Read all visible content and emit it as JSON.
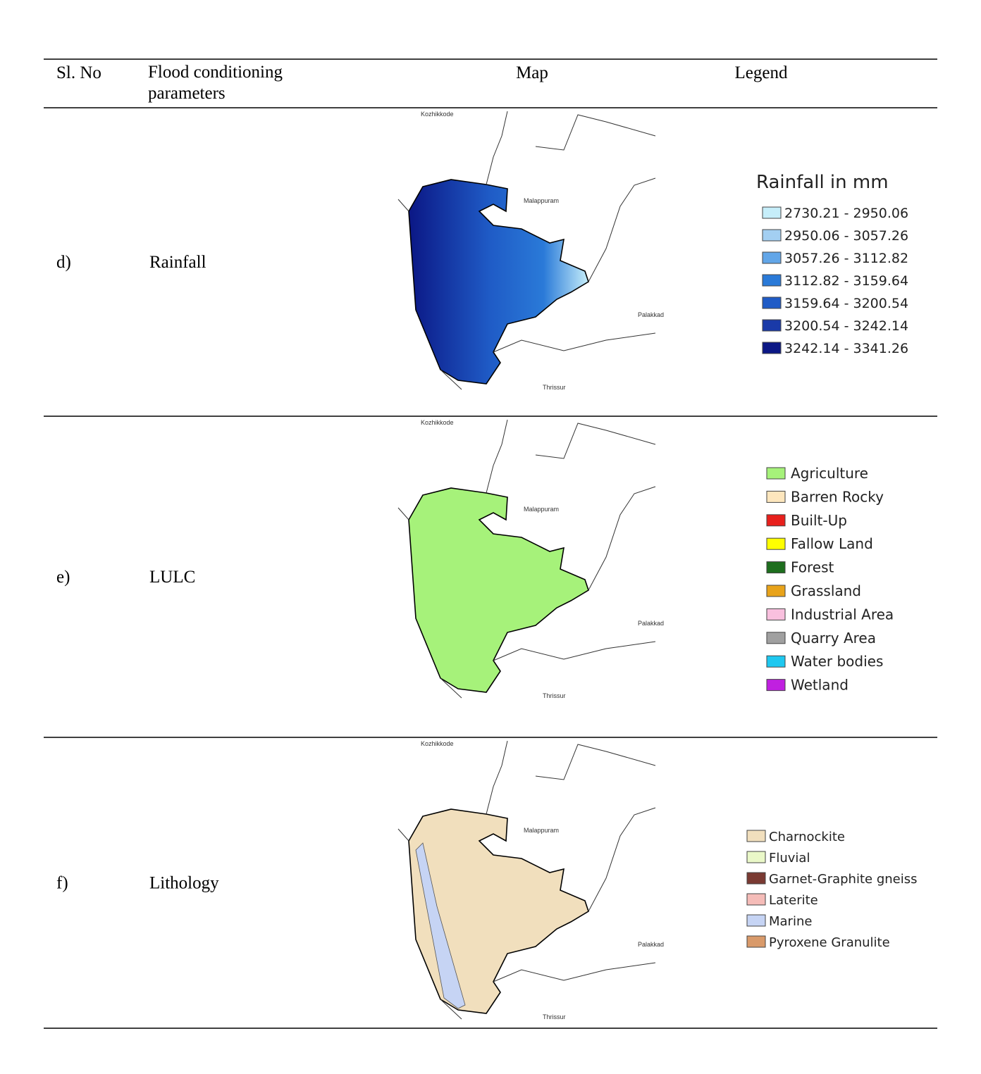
{
  "table": {
    "header": [
      "Sl. No",
      "Flood conditioning parameters",
      "Map",
      "Legend"
    ],
    "rows": [
      {
        "number": "d)",
        "parameter": "Rainfall",
        "map_labels": [
          "Kozhikkode",
          "Malappuram",
          "Palakkad",
          "Thrissur"
        ],
        "legend_title": "Rainfall in mm",
        "legend": [
          {
            "label": "2730.21 - 2950.06",
            "color": "#c6eefa"
          },
          {
            "label": "2950.06 - 3057.26",
            "color": "#a3cff2"
          },
          {
            "label": "3057.26 - 3112.82",
            "color": "#62a6e8"
          },
          {
            "label": "3112.82 - 3159.64",
            "color": "#2a7ad8"
          },
          {
            "label": "3159.64 - 3200.54",
            "color": "#1f5bc6"
          },
          {
            "label": "3200.54 - 3242.14",
            "color": "#1a3aa8"
          },
          {
            "label": "3242.14 - 3341.26",
            "color": "#0b1785"
          }
        ]
      },
      {
        "number": "e)",
        "parameter": "LULC",
        "map_labels": [
          "Kozhikkode",
          "Malappuram",
          "Palakkad",
          "Thrissur"
        ],
        "legend": [
          {
            "label": "Agriculture",
            "color": "#a6f27a"
          },
          {
            "label": "Barren Rocky",
            "color": "#fde6bd"
          },
          {
            "label": "Built-Up",
            "color": "#e8201c"
          },
          {
            "label": "Fallow Land",
            "color": "#ffff00"
          },
          {
            "label": "Forest",
            "color": "#1e6e1e"
          },
          {
            "label": "Grassland",
            "color": "#e8a31a"
          },
          {
            "label": "Industrial Area",
            "color": "#f9c0de"
          },
          {
            "label": "Quarry Area",
            "color": "#a0a0a0"
          },
          {
            "label": "Water bodies",
            "color": "#1ec8f0"
          },
          {
            "label": "Wetland",
            "color": "#c020e0"
          }
        ]
      },
      {
        "number": "f)",
        "parameter": "Lithology",
        "map_labels": [
          "Kozhikkode",
          "Malappuram",
          "Palakkad",
          "Thrissur"
        ],
        "legend": [
          {
            "label": "Charnockite",
            "color": "#f1dfbd"
          },
          {
            "label": "Fluvial",
            "color": "#eaf8c8"
          },
          {
            "label": "Garnet-Graphite gneiss",
            "color": "#7a3a32"
          },
          {
            "label": "Laterite",
            "color": "#f5bcb8"
          },
          {
            "label": "Marine",
            "color": "#c6d4f4"
          },
          {
            "label": "Pyroxene Granulite",
            "color": "#d99a6a"
          }
        ]
      }
    ]
  }
}
